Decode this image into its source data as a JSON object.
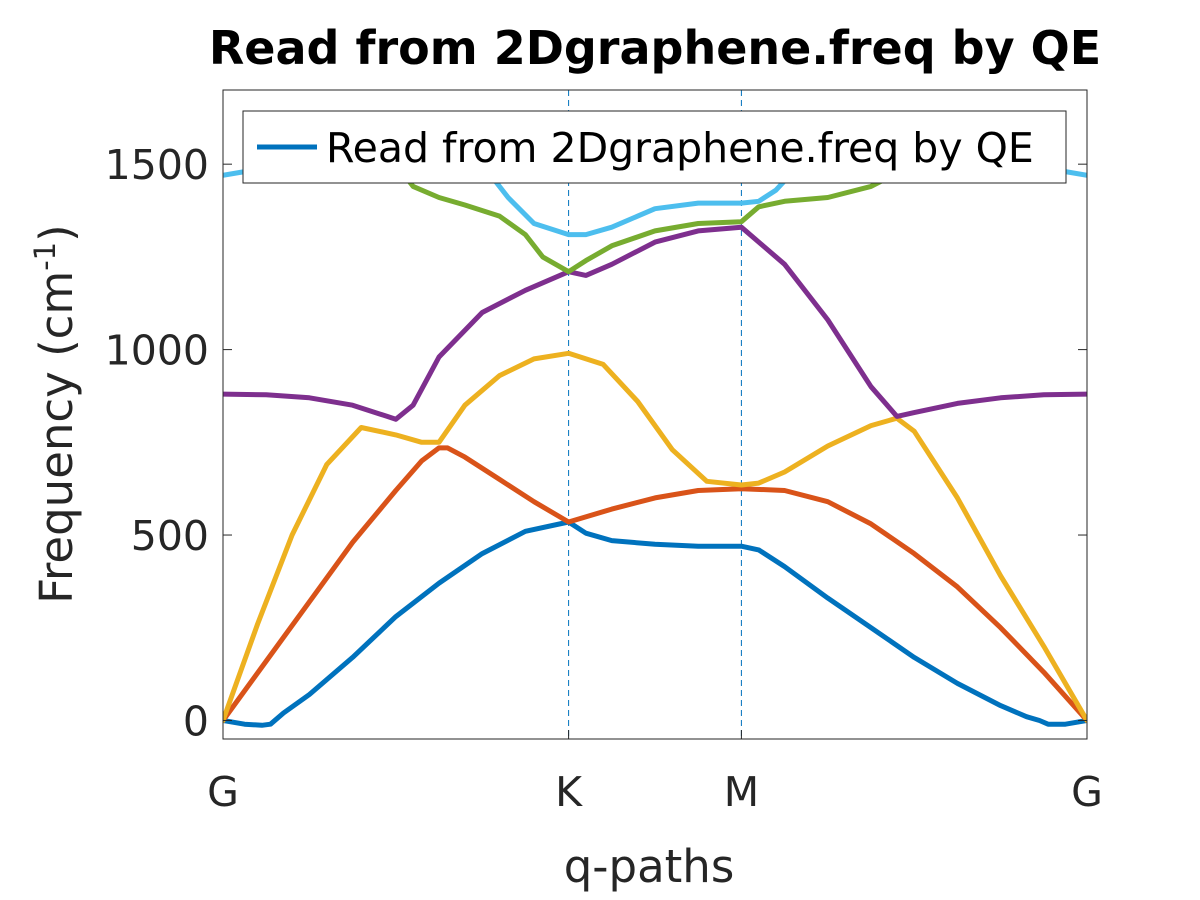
{
  "chart_data": {
    "type": "line",
    "title": "Read from 2Dgraphene.freq by QE",
    "xlabel": "q-paths",
    "ylabel": {
      "text": "Frequency (cm",
      "superscript": "-1",
      "close": ")"
    },
    "xlim": [
      0,
      1
    ],
    "ylim": [
      -50,
      1700
    ],
    "yticks": [
      0,
      500,
      1000,
      1500
    ],
    "xticks": [
      {
        "pos": 0.0,
        "label": "G"
      },
      {
        "pos": 0.4,
        "label": "K"
      },
      {
        "pos": 0.6,
        "label": "M"
      },
      {
        "pos": 1.0,
        "label": "G"
      }
    ],
    "vlines": [
      0.4,
      0.6
    ],
    "legend": {
      "entry": "Read from 2Dgraphene.freq by QE",
      "placement": "top",
      "color": "#0072BD"
    },
    "grid": false,
    "series": [
      {
        "color": "#0072BD",
        "x": [
          0,
          0.025,
          0.045,
          0.055,
          0.07,
          0.1,
          0.15,
          0.2,
          0.25,
          0.3,
          0.35,
          0.4,
          0.42,
          0.45,
          0.5,
          0.55,
          0.6,
          0.62,
          0.65,
          0.7,
          0.75,
          0.8,
          0.85,
          0.9,
          0.93,
          0.945,
          0.955,
          0.975,
          1.0
        ],
        "y": [
          0,
          -10,
          -13,
          -10,
          20,
          70,
          170,
          280,
          370,
          450,
          510,
          535,
          505,
          485,
          475,
          470,
          470,
          460,
          415,
          330,
          250,
          170,
          100,
          40,
          10,
          0,
          -10,
          -10,
          0
        ]
      },
      {
        "color": "#D95319",
        "x": [
          0,
          0.05,
          0.1,
          0.15,
          0.2,
          0.23,
          0.25,
          0.26,
          0.28,
          0.32,
          0.36,
          0.4,
          0.45,
          0.5,
          0.55,
          0.6,
          0.65,
          0.7,
          0.75,
          0.8,
          0.85,
          0.9,
          0.95,
          1.0
        ],
        "y": [
          0,
          160,
          320,
          480,
          620,
          700,
          735,
          735,
          710,
          650,
          590,
          535,
          570,
          600,
          620,
          625,
          620,
          590,
          530,
          450,
          360,
          250,
          130,
          0
        ]
      },
      {
        "color": "#EDB120",
        "x": [
          0,
          0.04,
          0.08,
          0.12,
          0.16,
          0.2,
          0.23,
          0.25,
          0.28,
          0.32,
          0.36,
          0.4,
          0.44,
          0.48,
          0.52,
          0.56,
          0.6,
          0.62,
          0.65,
          0.7,
          0.75,
          0.78,
          0.8,
          0.85,
          0.9,
          0.95,
          1.0
        ],
        "y": [
          0,
          260,
          500,
          690,
          790,
          770,
          750,
          750,
          850,
          930,
          975,
          990,
          960,
          860,
          730,
          645,
          635,
          640,
          670,
          740,
          795,
          815,
          780,
          600,
          390,
          200,
          0
        ]
      },
      {
        "color": "#7E2F8E",
        "x": [
          0,
          0.05,
          0.1,
          0.15,
          0.19,
          0.2,
          0.22,
          0.25,
          0.3,
          0.35,
          0.4,
          0.42,
          0.45,
          0.5,
          0.55,
          0.6,
          0.65,
          0.7,
          0.75,
          0.78,
          0.8,
          0.85,
          0.9,
          0.95,
          1.0
        ],
        "y": [
          880,
          878,
          870,
          850,
          820,
          812,
          850,
          980,
          1100,
          1160,
          1210,
          1200,
          1230,
          1290,
          1320,
          1330,
          1230,
          1080,
          900,
          820,
          830,
          855,
          870,
          878,
          880
        ]
      },
      {
        "color": "#77AC30",
        "x": [
          0.18,
          0.2,
          0.22,
          0.25,
          0.28,
          0.32,
          0.35,
          0.37,
          0.4,
          0.42,
          0.45,
          0.5,
          0.55,
          0.6,
          0.62,
          0.65,
          0.7,
          0.75,
          0.8
        ],
        "y": [
          1560,
          1500,
          1440,
          1410,
          1390,
          1360,
          1310,
          1250,
          1210,
          1240,
          1280,
          1320,
          1340,
          1345,
          1385,
          1400,
          1410,
          1440,
          1500
        ]
      },
      {
        "color": "#4DBEEE",
        "x": [
          0,
          0.025,
          0.045,
          0.06,
          0.28,
          0.3,
          0.33,
          0.36,
          0.4,
          0.42,
          0.45,
          0.5,
          0.55,
          0.6,
          0.62,
          0.64,
          0.66,
          0.7,
          0.94,
          0.955,
          0.975,
          1.0
        ],
        "y": [
          1470,
          1480,
          1500,
          1530,
          1540,
          1500,
          1410,
          1340,
          1310,
          1310,
          1330,
          1380,
          1395,
          1395,
          1400,
          1430,
          1480,
          1540,
          1530,
          1500,
          1480,
          1470
        ]
      }
    ]
  }
}
